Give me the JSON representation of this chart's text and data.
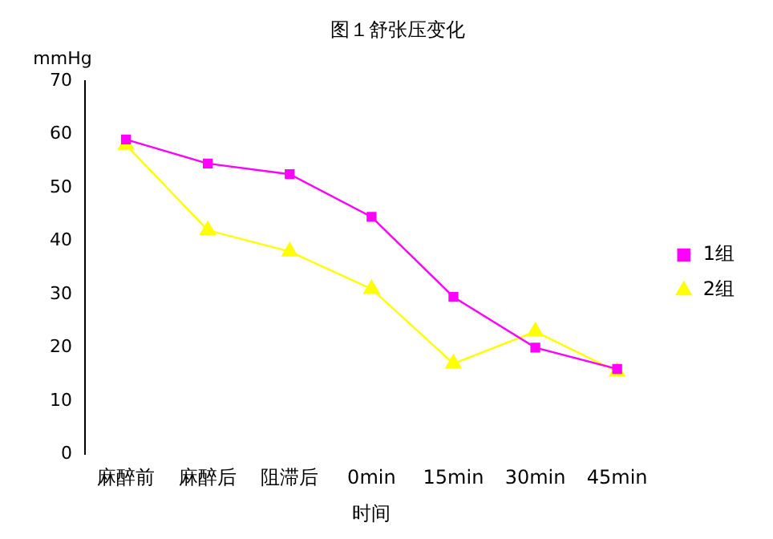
{
  "chart_data": {
    "type": "line",
    "title": "图１舒张压变化",
    "xlabel": "时间",
    "ylabel": "mmHg",
    "categories": [
      "麻醉前",
      "麻醉后",
      "阻滞后",
      "0min",
      "15min",
      "30min",
      "45min"
    ],
    "series": [
      {
        "name": "1组",
        "color": "#ff00ff",
        "marker": "square",
        "values": [
          59,
          54.5,
          52.5,
          44.5,
          29.5,
          20,
          16
        ]
      },
      {
        "name": "2组",
        "color": "#ffff00",
        "marker": "triangle",
        "values": [
          58,
          42,
          38,
          31,
          17,
          23,
          15.5
        ]
      }
    ],
    "ylim": [
      0,
      70
    ],
    "yticks": [
      0,
      10,
      20,
      30,
      40,
      50,
      60,
      70
    ],
    "grid": false,
    "legend": "right"
  }
}
